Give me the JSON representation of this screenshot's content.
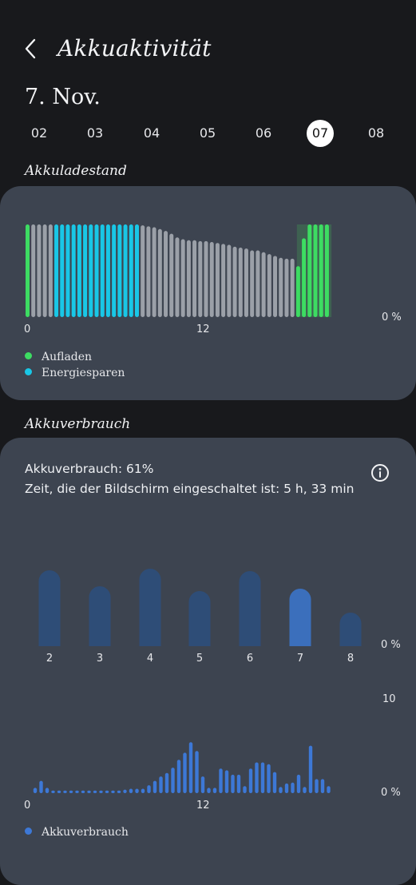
{
  "header": {
    "title": "Akkuaktivität"
  },
  "date_label": "7. Nov.",
  "days": [
    {
      "label": "02",
      "selected": false
    },
    {
      "label": "03",
      "selected": false
    },
    {
      "label": "04",
      "selected": false
    },
    {
      "label": "05",
      "selected": false
    },
    {
      "label": "06",
      "selected": false
    },
    {
      "label": "07",
      "selected": true
    },
    {
      "label": "08",
      "selected": false
    }
  ],
  "battery_level": {
    "title": "Akkuladestand",
    "x_start": "0",
    "x_mid": "12",
    "y_min": "0 %",
    "legend": [
      {
        "label": "Aufladen",
        "color": "#3ddc62"
      },
      {
        "label": "Energiesparen",
        "color": "#19c7e6"
      }
    ]
  },
  "usage": {
    "title": "Akkuverbrauch",
    "usage_text": "Akkuverbrauch: 61%",
    "screen_time_text": "Zeit, die der Bildschirm eingeschaltet ist: 5 h, 33 min",
    "daily_y_min": "0 %",
    "hourly_y_max": "10",
    "hourly_y_min": "0 %",
    "hourly_x_start": "0",
    "hourly_x_mid": "12",
    "legend": [
      {
        "label": "Akkuverbrauch",
        "color": "#3d78d6"
      }
    ]
  },
  "chart_data": [
    {
      "type": "bar",
      "title": "Akkuladestand",
      "ylabel": "%",
      "ylim": [
        0,
        100
      ],
      "note": "battery level every 20 min; state: c=charging, s=power saving, n=normal",
      "values": [
        100,
        100,
        100,
        100,
        100,
        100,
        100,
        100,
        100,
        100,
        100,
        100,
        100,
        100,
        100,
        100,
        100,
        100,
        100,
        100,
        99,
        98,
        97,
        95,
        93,
        90,
        86,
        84,
        83,
        83,
        82,
        82,
        81,
        80,
        79,
        78,
        76,
        75,
        74,
        72,
        72,
        70,
        68,
        66,
        64,
        63,
        63,
        55,
        85,
        100,
        100,
        100,
        100
      ],
      "states": [
        "c",
        "n",
        "n",
        "n",
        "n",
        "s",
        "s",
        "s",
        "s",
        "s",
        "s",
        "s",
        "s",
        "s",
        "s",
        "s",
        "s",
        "s",
        "s",
        "s",
        "n",
        "n",
        "n",
        "n",
        "n",
        "n",
        "n",
        "n",
        "n",
        "n",
        "n",
        "n",
        "n",
        "n",
        "n",
        "n",
        "n",
        "n",
        "n",
        "n",
        "n",
        "n",
        "n",
        "n",
        "n",
        "n",
        "n",
        "c",
        "c",
        "c",
        "c",
        "c",
        "c"
      ]
    },
    {
      "type": "bar",
      "title": "Akkuverbrauch",
      "categories": [
        "2",
        "3",
        "4",
        "5",
        "6",
        "7",
        "8"
      ],
      "values": [
        9.5,
        7.5,
        9.7,
        6.9,
        9.4,
        7.2,
        4.2
      ],
      "highlight": "7"
    },
    {
      "type": "bar",
      "title": "Akkuverbrauch",
      "ylim": [
        0,
        10
      ],
      "values": [
        0.6,
        1.4,
        0.6,
        0.3,
        0.3,
        0.3,
        0.3,
        0.3,
        0.3,
        0.3,
        0.3,
        0.3,
        0.3,
        0.3,
        0.3,
        0.4,
        0.5,
        0.5,
        0.5,
        0.9,
        1.4,
        1.9,
        2.3,
        2.9,
        3.8,
        4.6,
        5.8,
        4.8,
        1.9,
        0.6,
        0.6,
        2.8,
        2.6,
        2.1,
        2.1,
        0.8,
        2.8,
        3.5,
        3.5,
        3.3,
        2.4,
        0.7,
        1.1,
        1.2,
        2.1,
        0.7,
        5.4,
        1.6,
        1.6,
        0.8
      ],
      "legend": "Akkuverbrauch"
    }
  ]
}
